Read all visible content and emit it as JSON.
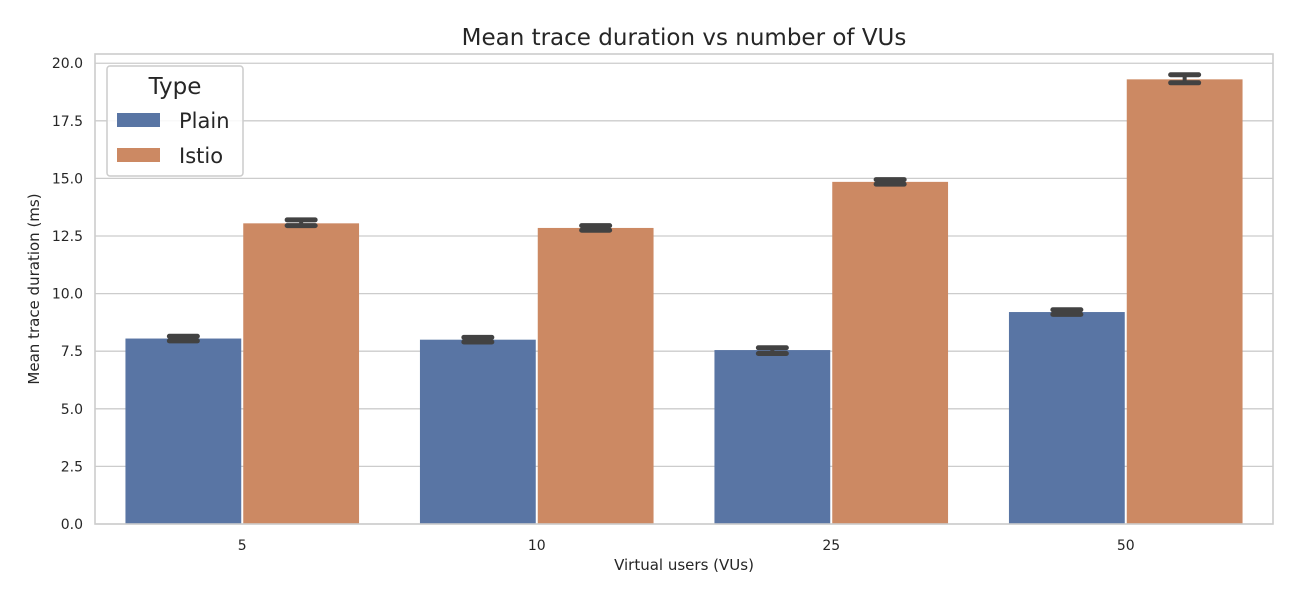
{
  "chart_data": {
    "type": "bar",
    "title": "Mean trace duration vs number of VUs",
    "xlabel": "Virtual users (VUs)",
    "ylabel": "Mean trace duration (ms)",
    "categories": [
      "5",
      "10",
      "25",
      "50"
    ],
    "ylim": [
      0,
      20.4
    ],
    "yticks": [
      "0.0",
      "2.5",
      "5.0",
      "7.5",
      "10.0",
      "12.5",
      "15.0",
      "17.5",
      "20.0"
    ],
    "grid": true,
    "legend": {
      "title": "Type",
      "placement": "top-left"
    },
    "series": [
      {
        "name": "Plain",
        "color": "#5975a4",
        "values": [
          8.05,
          8.0,
          7.55,
          9.2
        ],
        "err_low": [
          7.95,
          7.9,
          7.4,
          9.1
        ],
        "err_high": [
          8.15,
          8.1,
          7.65,
          9.3
        ]
      },
      {
        "name": "Istio",
        "color": "#cc8963",
        "values": [
          13.05,
          12.85,
          14.85,
          19.3
        ],
        "err_low": [
          12.95,
          12.75,
          14.75,
          19.15
        ],
        "err_high": [
          13.2,
          12.95,
          14.95,
          19.5
        ]
      }
    ]
  }
}
